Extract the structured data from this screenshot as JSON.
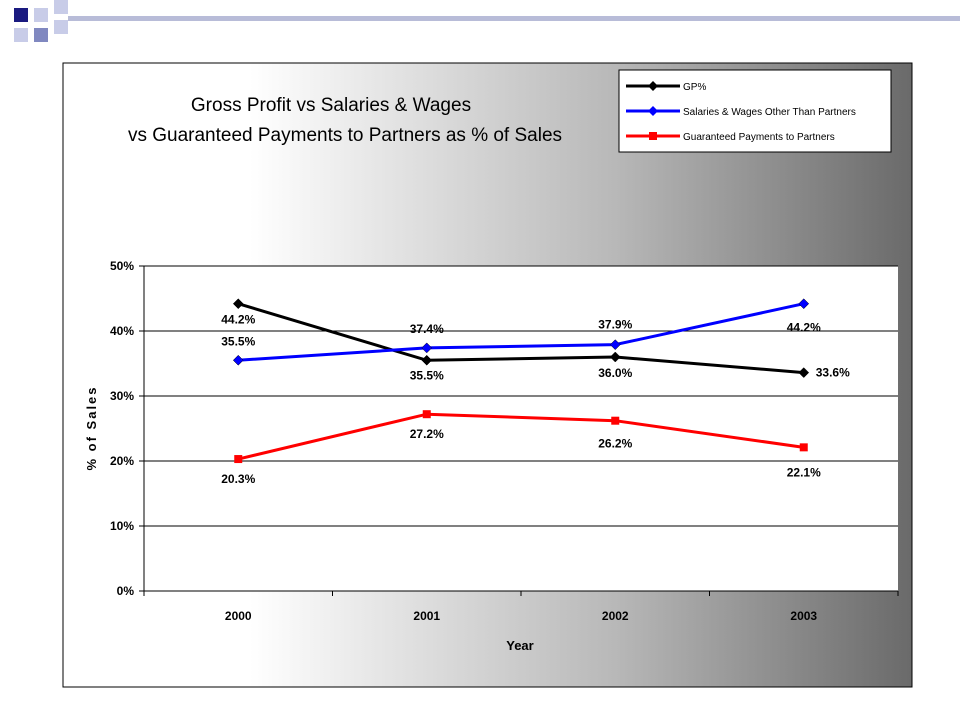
{
  "chart_data": {
    "type": "line",
    "title": [
      "Gross Profit vs Salaries & Wages",
      "vs Guaranteed Payments to Partners as % of Sales"
    ],
    "xlabel": "Year",
    "ylabel": "% of Sales",
    "categories": [
      "2000",
      "2001",
      "2002",
      "2003"
    ],
    "ylim": [
      0,
      50
    ],
    "yticks": [
      0,
      10,
      20,
      30,
      40,
      50
    ],
    "ytick_labels": [
      "0%",
      "10%",
      "20%",
      "30%",
      "40%",
      "50%"
    ],
    "grid": "horizontal",
    "legend_position": "top-right",
    "series": [
      {
        "name": "GP%",
        "color": "#000000",
        "marker": "diamond",
        "values": [
          44.2,
          35.5,
          36.0,
          33.6
        ],
        "labels": [
          "44.2%",
          "35.5%",
          "36.0%",
          "33.6%"
        ]
      },
      {
        "name": "Salaries & Wages Other Than Partners",
        "color": "#0000ff",
        "marker": "diamond",
        "values": [
          35.5,
          37.4,
          37.9,
          44.2
        ],
        "labels": [
          "35.5%",
          "37.4%",
          "37.9%",
          "44.2%"
        ]
      },
      {
        "name": "Guaranteed Payments to Partners",
        "color": "#ff0000",
        "marker": "square",
        "values": [
          20.3,
          27.2,
          26.2,
          22.1
        ],
        "labels": [
          "20.3%",
          "27.2%",
          "26.2%",
          "22.1%"
        ]
      }
    ]
  }
}
